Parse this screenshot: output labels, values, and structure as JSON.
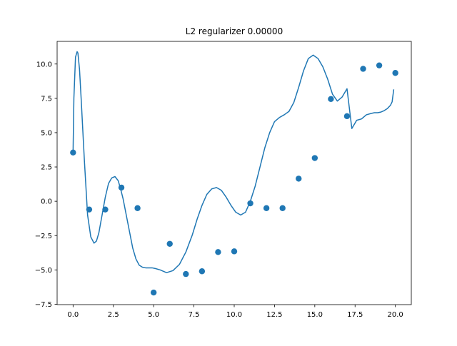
{
  "chart_data": {
    "type": "scatter",
    "title": "L2 regularizer 0.00000",
    "xlabel": "",
    "ylabel": "",
    "xlim": [
      -0.99,
      20.99
    ],
    "ylim": [
      -7.53,
      11.65
    ],
    "xticks": [
      0.0,
      2.5,
      5.0,
      7.5,
      10.0,
      12.5,
      15.0,
      17.5,
      20.0
    ],
    "xtick_labels": [
      "0.0",
      "2.5",
      "5.0",
      "7.5",
      "10.0",
      "12.5",
      "15.0",
      "17.5",
      "20.0"
    ],
    "yticks": [
      -7.5,
      -5.0,
      -2.5,
      0.0,
      2.5,
      5.0,
      7.5,
      10.0
    ],
    "ytick_labels": [
      "−7.5",
      "−5.0",
      "−2.5",
      "0.0",
      "2.5",
      "5.0",
      "7.5",
      "10.0"
    ],
    "grid": false,
    "color": "#1f77b4",
    "series": [
      {
        "kind": "scatter",
        "x": [
          0,
          1,
          2,
          3,
          4,
          5,
          6,
          7,
          8,
          9,
          10,
          11,
          12,
          13,
          14,
          15,
          16,
          17,
          18,
          19,
          20
        ],
        "y": [
          3.55,
          -0.6,
          -0.6,
          1.0,
          -0.5,
          -6.65,
          -3.1,
          -5.3,
          -5.1,
          -3.7,
          -3.65,
          -0.15,
          -0.5,
          -0.5,
          1.65,
          3.15,
          7.45,
          6.2,
          9.65,
          9.9,
          9.35
        ]
      },
      {
        "kind": "line",
        "x": [
          0.0,
          0.05,
          0.15,
          0.25,
          0.3,
          0.4,
          0.5,
          0.7,
          0.9,
          1.1,
          1.3,
          1.45,
          1.6,
          1.8,
          2.0,
          2.2,
          2.4,
          2.6,
          2.8,
          2.95,
          3.1,
          3.3,
          3.5,
          3.7,
          3.9,
          4.1,
          4.3,
          4.5,
          4.7,
          4.9,
          5.1,
          5.4,
          5.8,
          6.2,
          6.6,
          7.0,
          7.4,
          7.7,
          8.0,
          8.3,
          8.6,
          8.9,
          9.2,
          9.5,
          9.8,
          10.1,
          10.4,
          10.7,
          11.0,
          11.3,
          11.6,
          11.9,
          12.2,
          12.5,
          12.8,
          13.1,
          13.4,
          13.7,
          14.0,
          14.3,
          14.6,
          14.9,
          15.2,
          15.5,
          15.8,
          16.1,
          16.4,
          16.7,
          17.0,
          17.3,
          17.6,
          17.9,
          18.2,
          18.5,
          18.7,
          18.9,
          19.1,
          19.3,
          19.5,
          19.7,
          19.8,
          19.9
        ],
        "y": [
          3.6,
          7.5,
          10.5,
          10.9,
          10.8,
          9.6,
          7.5,
          3.0,
          -1.0,
          -2.6,
          -3.05,
          -2.9,
          -2.3,
          -1.0,
          0.3,
          1.3,
          1.7,
          1.8,
          1.5,
          0.9,
          0.2,
          -1.0,
          -2.2,
          -3.4,
          -4.2,
          -4.65,
          -4.8,
          -4.85,
          -4.85,
          -4.85,
          -4.9,
          -5.0,
          -5.2,
          -5.05,
          -4.6,
          -3.7,
          -2.45,
          -1.3,
          -0.3,
          0.5,
          0.9,
          1.0,
          0.8,
          0.3,
          -0.3,
          -0.8,
          -1.0,
          -0.8,
          0.0,
          1.1,
          2.5,
          3.9,
          5.0,
          5.8,
          6.1,
          6.3,
          6.55,
          7.2,
          8.3,
          9.5,
          10.4,
          10.65,
          10.4,
          9.8,
          8.9,
          7.8,
          7.3,
          7.6,
          8.2,
          5.3,
          5.9,
          6.0,
          6.3,
          6.4,
          6.45,
          6.45,
          6.5,
          6.6,
          6.75,
          7.0,
          7.25,
          8.15
        ]
      }
    ]
  }
}
